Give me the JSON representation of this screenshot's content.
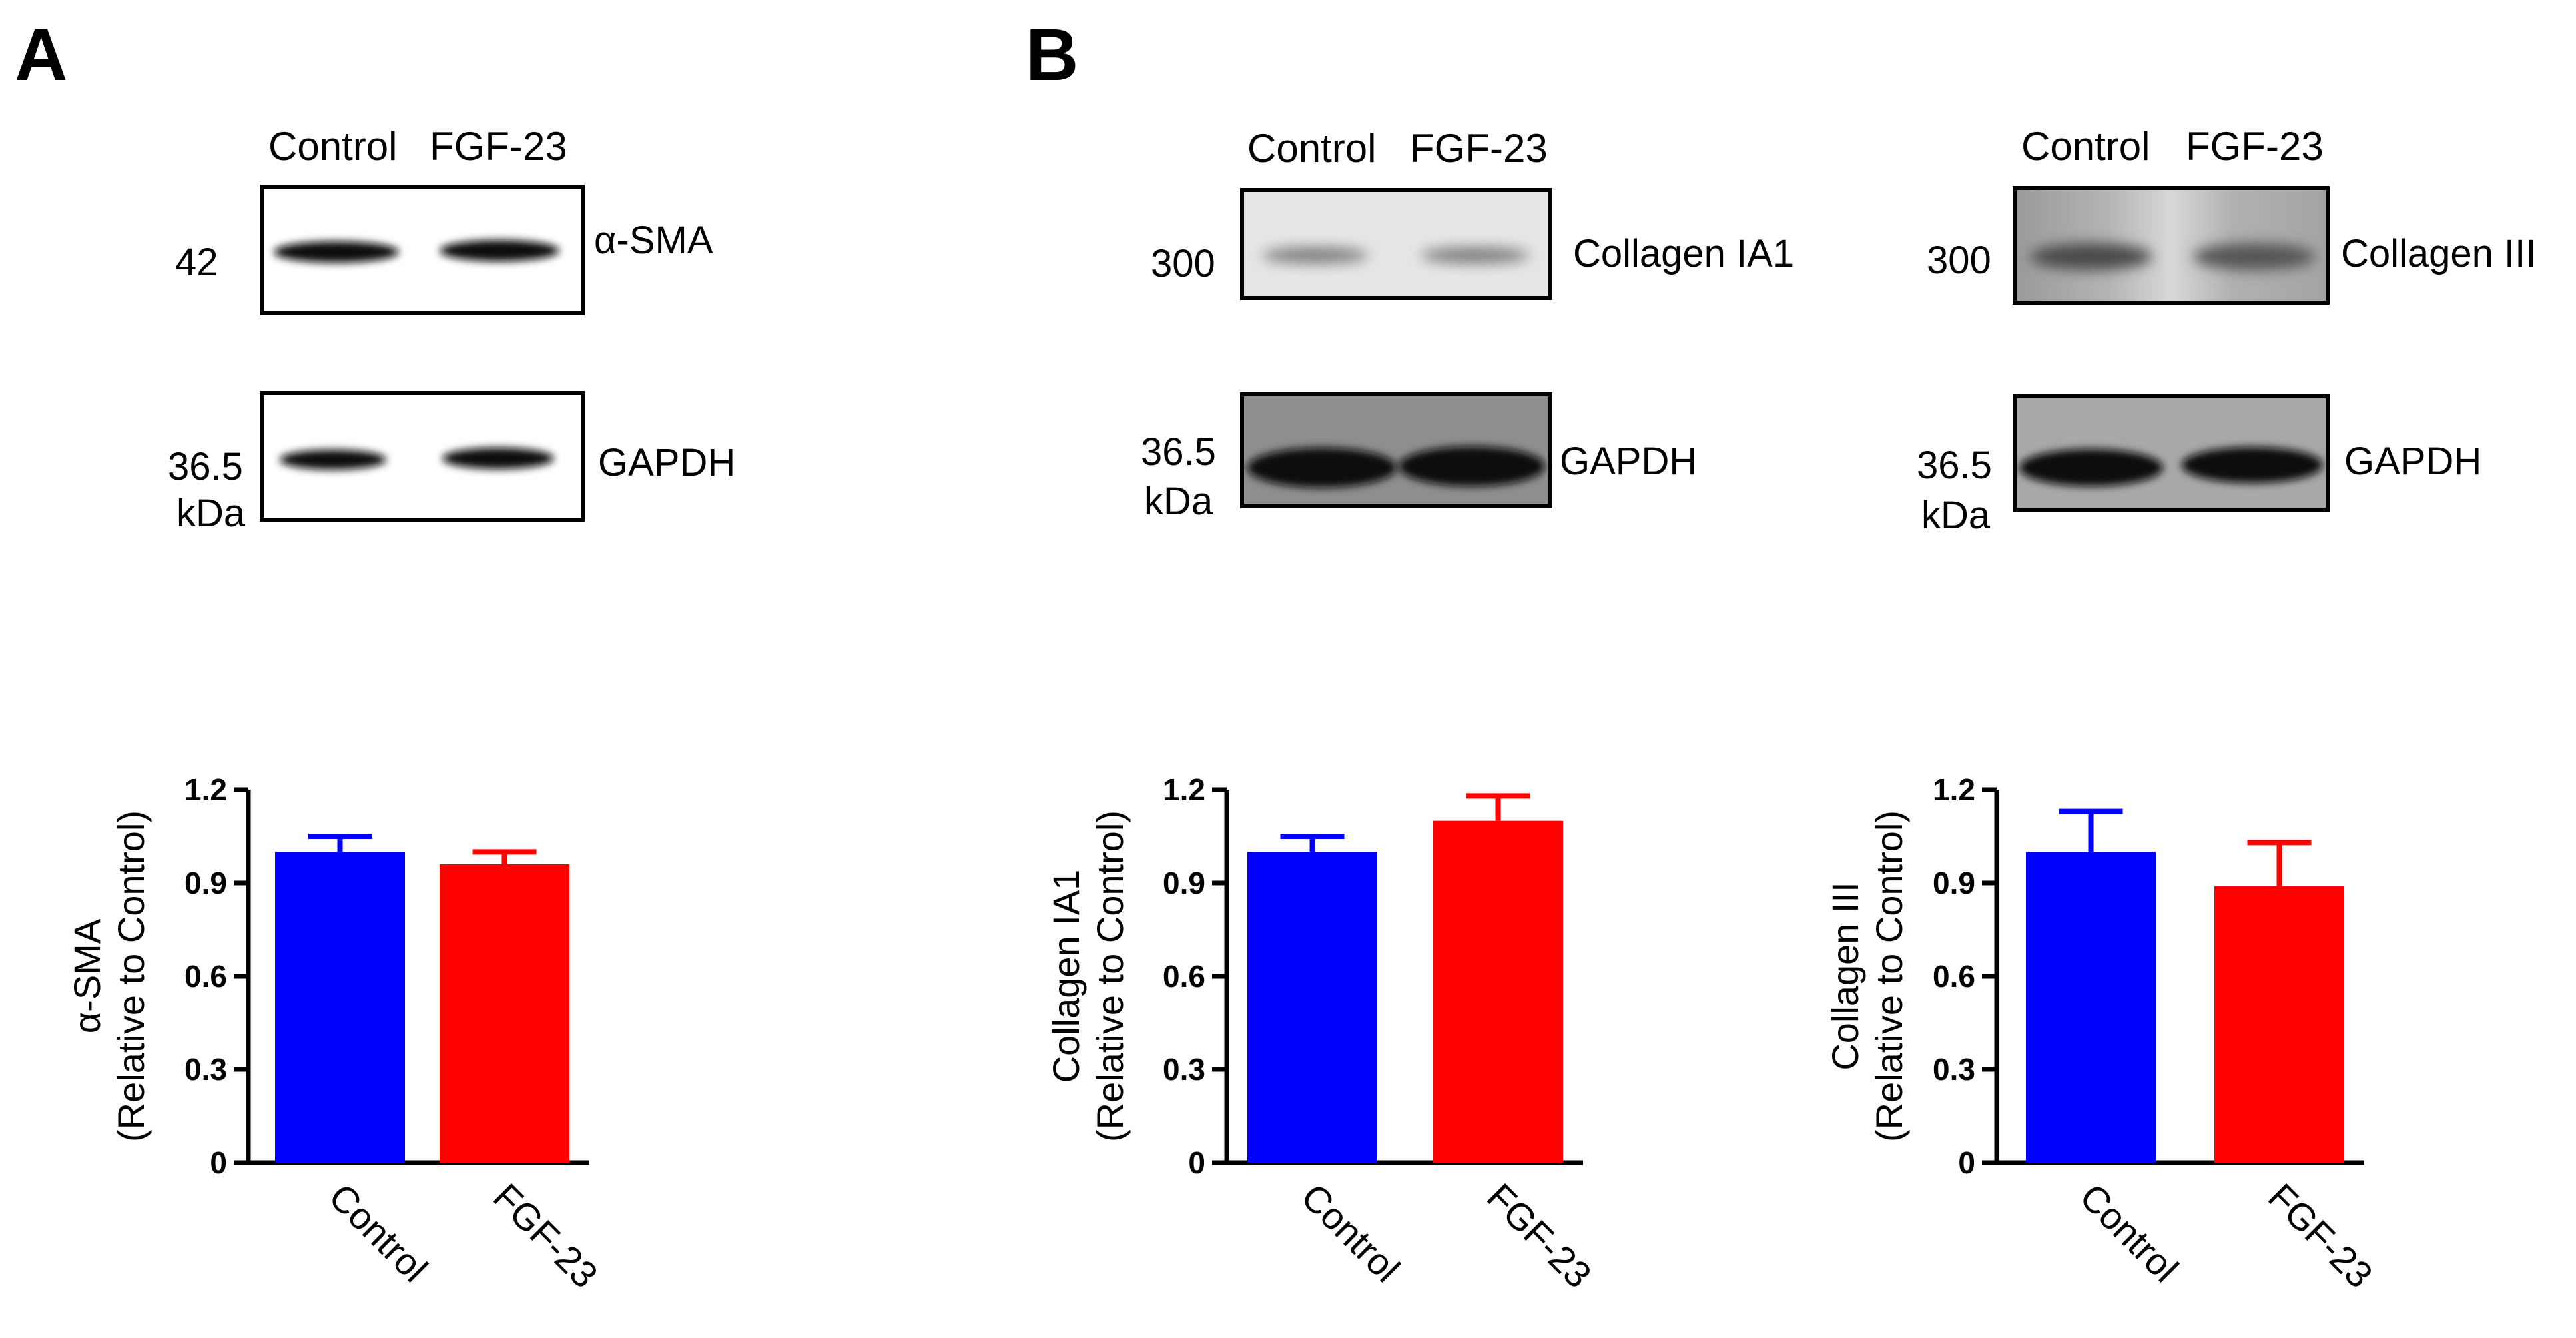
{
  "panels": {
    "a": {
      "letter": "A"
    },
    "b": {
      "letter": "B"
    }
  },
  "blots": [
    {
      "lane_labels": [
        "Control",
        "FGF-23"
      ],
      "target": {
        "name": "α-SMA",
        "marker": "42",
        "marker_unit": ""
      },
      "loading": {
        "name": "GAPDH",
        "marker": "36.5",
        "marker_unit": "kDa"
      }
    },
    {
      "lane_labels": [
        "Control",
        "FGF-23"
      ],
      "target": {
        "name": "Collagen IA1",
        "marker": "300",
        "marker_unit": ""
      },
      "loading": {
        "name": "GAPDH",
        "marker": "36.5",
        "marker_unit": "kDa"
      }
    },
    {
      "lane_labels": [
        "Control",
        "FGF-23"
      ],
      "target": {
        "name": "Collagen III",
        "marker": "300",
        "marker_unit": ""
      },
      "loading": {
        "name": "GAPDH",
        "marker": "36.5",
        "marker_unit": "kDa"
      }
    }
  ],
  "colors": {
    "control": "#0000ff",
    "fgf23": "#ff0000"
  },
  "chart_data": [
    {
      "type": "bar",
      "categories": [
        "Control",
        "FGF-23"
      ],
      "values": [
        1.0,
        0.96
      ],
      "errors": [
        0.05,
        0.04
      ],
      "ylabel_lines": [
        "α-SMA",
        "(Relative to Control)"
      ],
      "ylim": [
        0,
        1.2
      ],
      "yticks": [
        "0",
        "0.3",
        "0.6",
        "0.9",
        "1.2"
      ],
      "colors": [
        "#0000ff",
        "#ff0000"
      ]
    },
    {
      "type": "bar",
      "categories": [
        "Control",
        "FGF-23"
      ],
      "values": [
        1.0,
        1.1
      ],
      "errors": [
        0.05,
        0.08
      ],
      "ylabel_lines": [
        "Collagen IA1",
        "(Relative to Control)"
      ],
      "ylim": [
        0,
        1.2
      ],
      "yticks": [
        "0",
        "0.3",
        "0.6",
        "0.9",
        "1.2"
      ],
      "colors": [
        "#0000ff",
        "#ff0000"
      ]
    },
    {
      "type": "bar",
      "categories": [
        "Control",
        "FGF-23"
      ],
      "values": [
        1.0,
        0.89
      ],
      "errors": [
        0.13,
        0.14
      ],
      "ylabel_lines": [
        "Collagen III",
        "(Relative to Control)"
      ],
      "ylim": [
        0,
        1.2
      ],
      "yticks": [
        "0",
        "0.3",
        "0.6",
        "0.9",
        "1.2"
      ],
      "colors": [
        "#0000ff",
        "#ff0000"
      ]
    }
  ]
}
